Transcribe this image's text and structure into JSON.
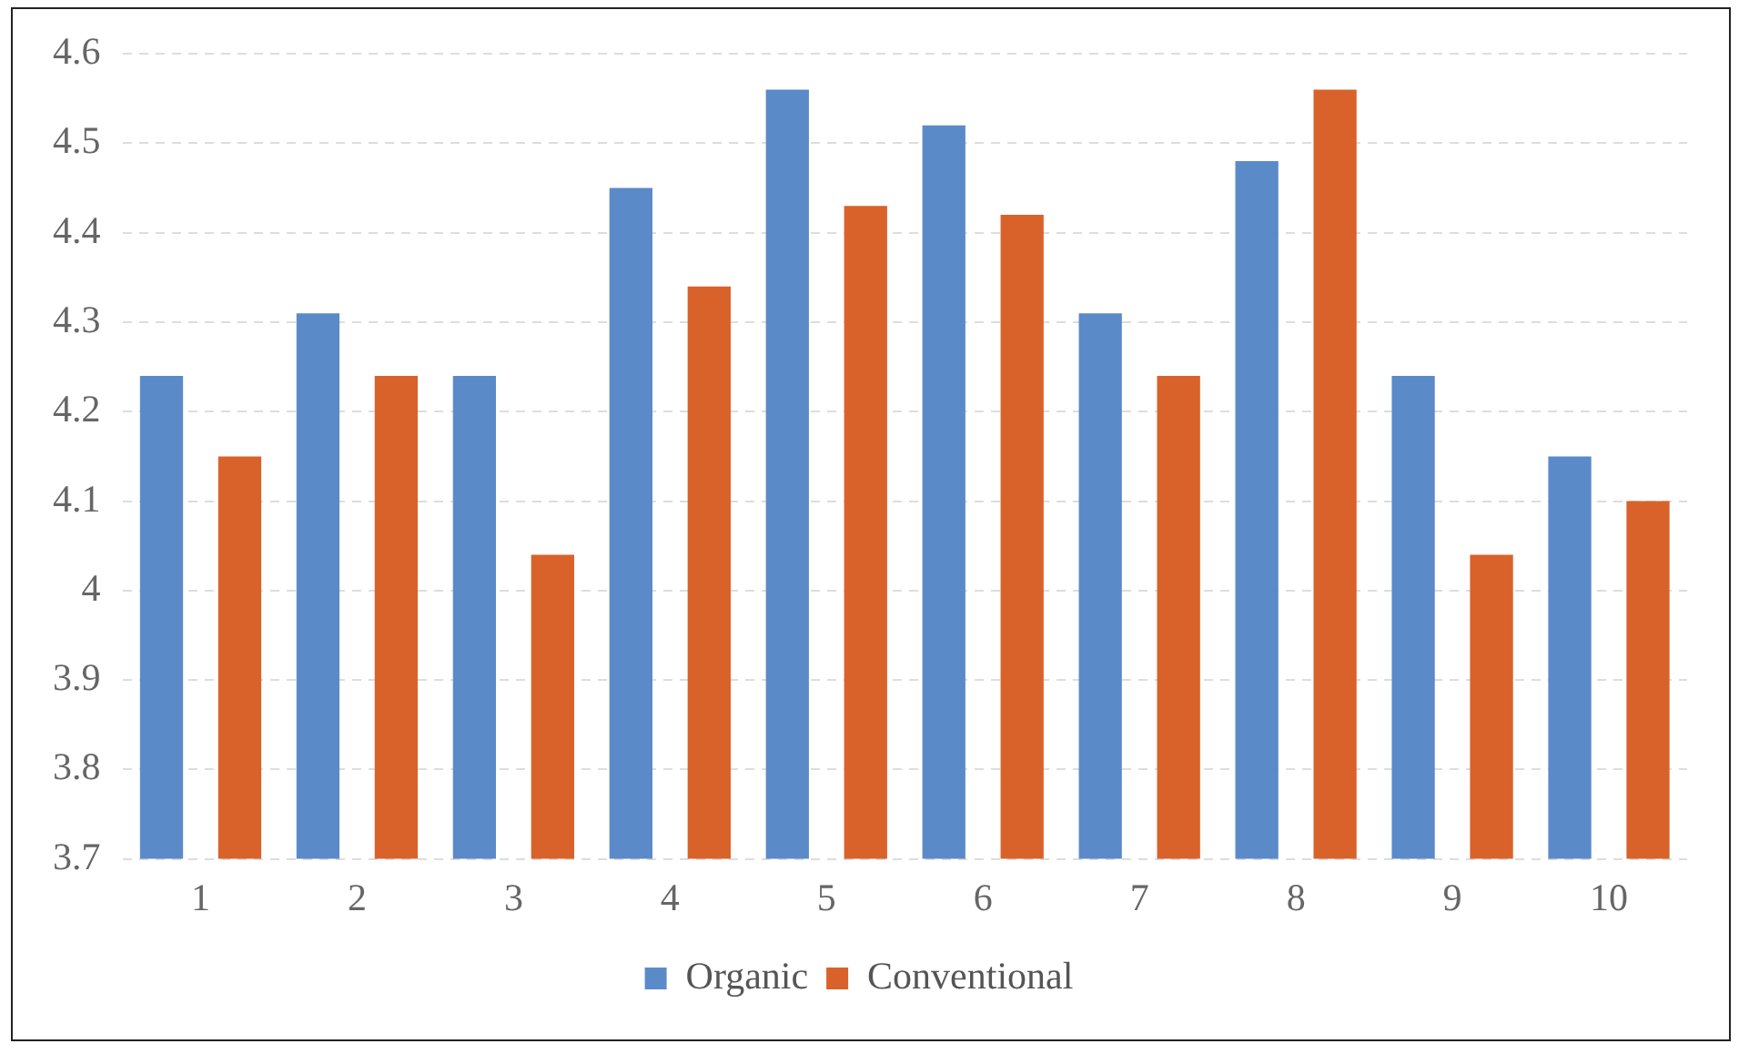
{
  "chart_data": {
    "type": "bar",
    "categories": [
      "1",
      "2",
      "3",
      "4",
      "5",
      "6",
      "7",
      "8",
      "9",
      "10"
    ],
    "series": [
      {
        "name": "Organic",
        "color": "#5b8ac9",
        "values": [
          4.24,
          4.31,
          4.24,
          4.45,
          4.56,
          4.52,
          4.31,
          4.48,
          4.24,
          4.15
        ]
      },
      {
        "name": "Conventional",
        "color": "#d9622b",
        "values": [
          4.15,
          4.24,
          4.04,
          4.34,
          4.43,
          4.42,
          4.24,
          4.56,
          4.04,
          4.1
        ]
      }
    ],
    "ylim": [
      3.7,
      4.6
    ],
    "yticks": [
      3.7,
      3.8,
      3.9,
      4,
      4.1,
      4.2,
      4.3,
      4.4,
      4.5,
      4.6
    ],
    "grid": "y",
    "legend": "bottom"
  }
}
